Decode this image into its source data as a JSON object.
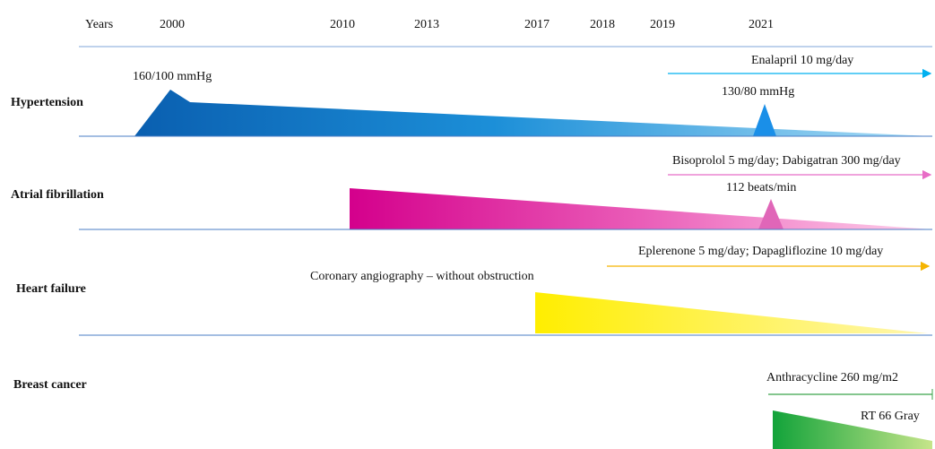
{
  "header": {
    "label": "Years",
    "years": [
      "2000",
      "2010",
      "2013",
      "2017",
      "2018",
      "2019",
      "2021"
    ]
  },
  "rows": [
    {
      "label": "Hypertension",
      "therapy": "Enalapril 10 mg/day",
      "start_note": "160/100 mmHg",
      "current_note": "130/80 mmHg"
    },
    {
      "label": "Atrial fibrillation",
      "therapy": "Bisoprolol 5 mg/day; Dabigatran 300 mg/day",
      "current_note": "112 beats/min"
    },
    {
      "label": "Heart failure",
      "therapy": "Eplerenone 5 mg/day; Dapagliflozine 10 mg/day",
      "event_note": "Coronary angiography – without obstruction"
    },
    {
      "label": "Breast cancer",
      "therapy": "Anthracycline 260 mg/m2",
      "current_note": "RT 66 Gray"
    }
  ]
}
